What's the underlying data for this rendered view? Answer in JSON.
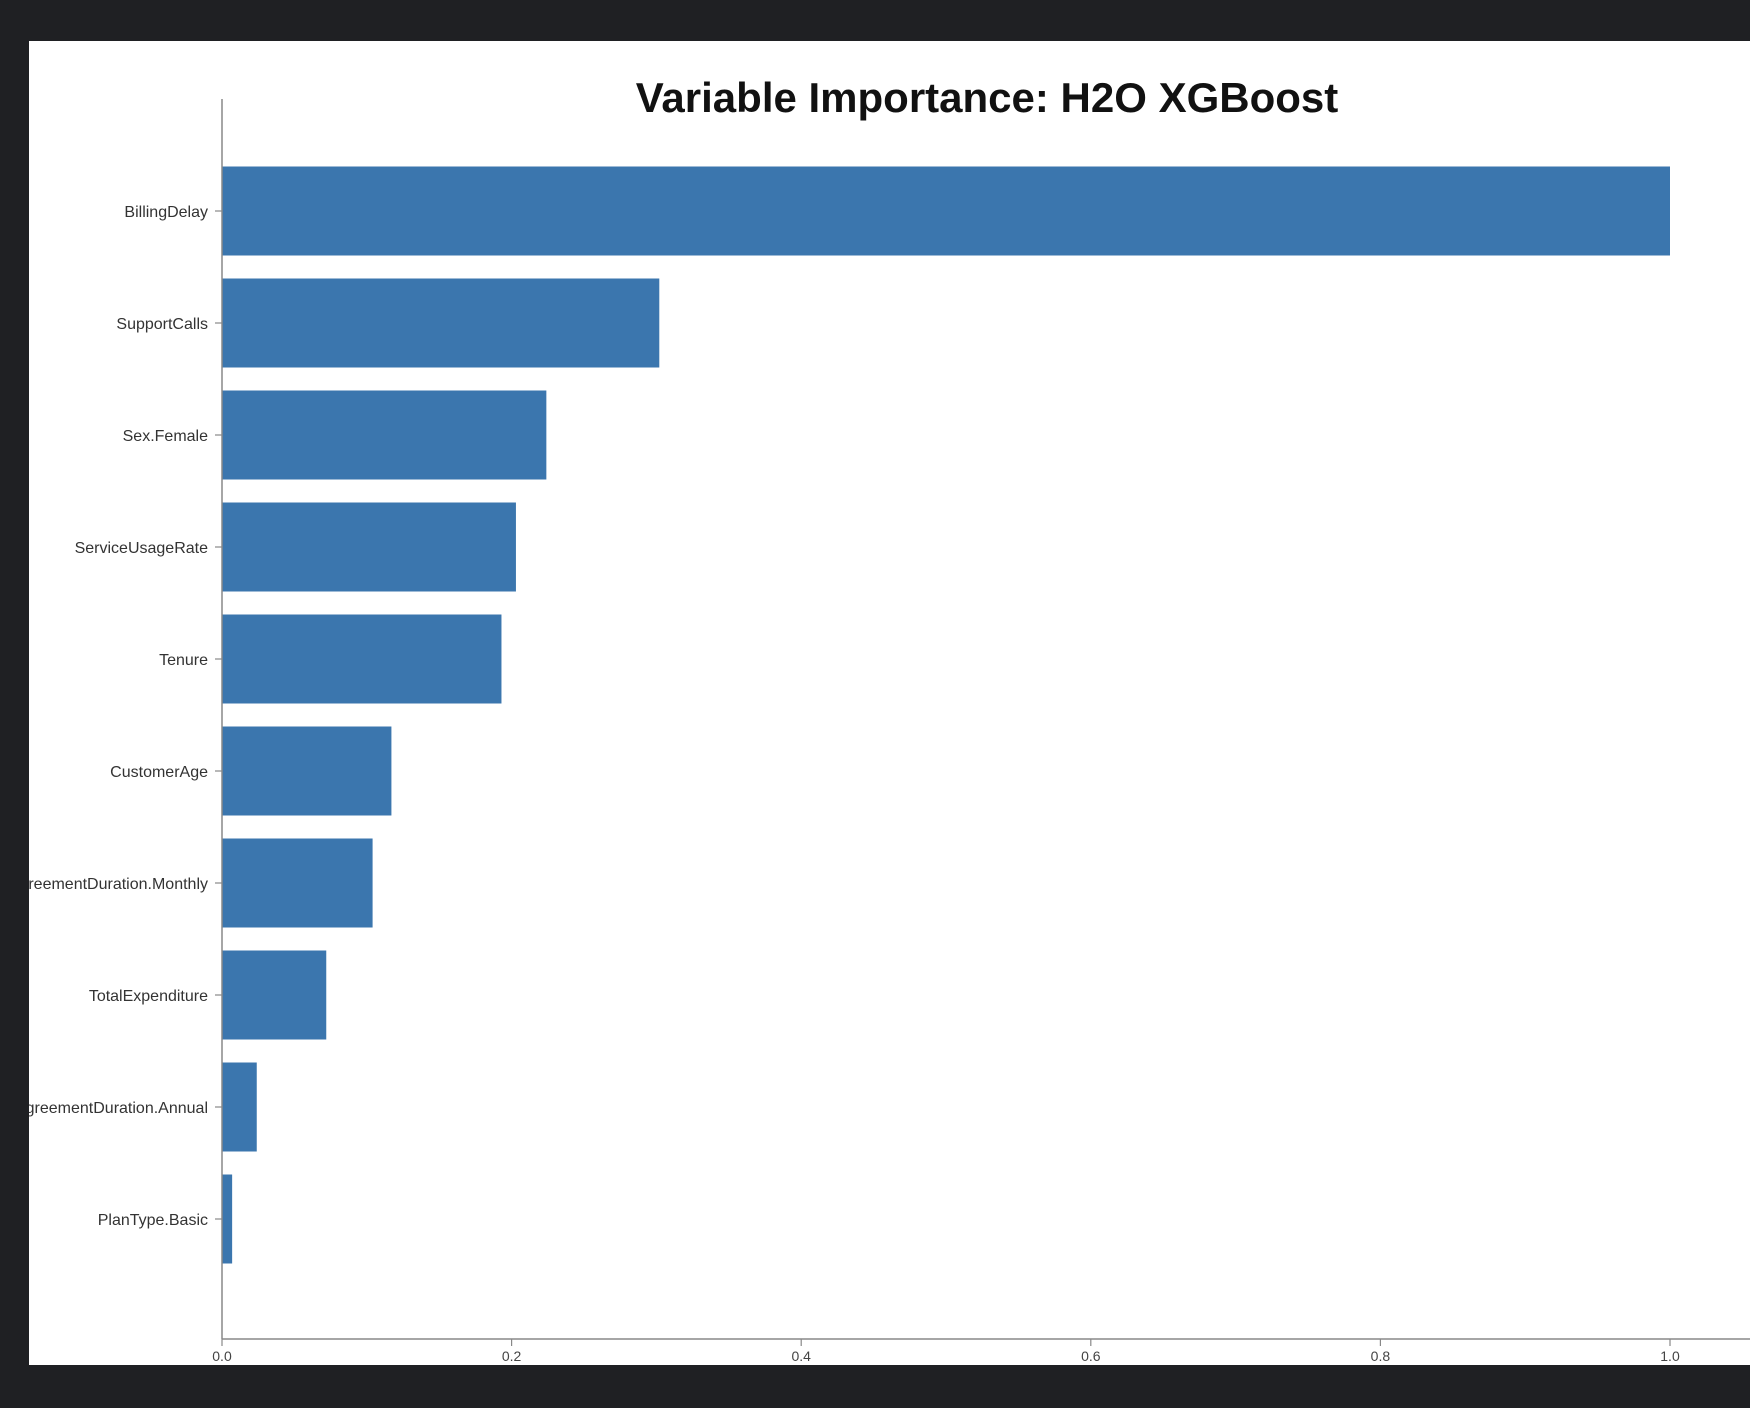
{
  "colors": {
    "background": "#1f2023",
    "panel": "#ffffff",
    "bar": "#3b76ae",
    "axis": "#888888"
  },
  "chart_data": {
    "type": "bar",
    "orientation": "horizontal",
    "title": "Variable Importance: H2O XGBoost",
    "xlabel": "",
    "ylabel": "",
    "categories": [
      "BillingDelay",
      "SupportCalls",
      "Sex.Female",
      "ServiceUsageRate",
      "Tenure",
      "CustomerAge",
      "AgreementDuration.Monthly",
      "TotalExpenditure",
      "AgreementDuration.Annual",
      "PlanType.Basic"
    ],
    "values": [
      1.0,
      0.302,
      0.224,
      0.203,
      0.193,
      0.117,
      0.104,
      0.072,
      0.024,
      0.007
    ],
    "xlim": [
      0,
      1.0
    ],
    "xticks": [
      0.0,
      0.2,
      0.4,
      0.6,
      0.8,
      1.0
    ],
    "xtick_labels": [
      "0.0",
      "0.2",
      "0.4",
      "0.6",
      "0.8",
      "1.0"
    ],
    "grid": false,
    "legend": "none"
  }
}
